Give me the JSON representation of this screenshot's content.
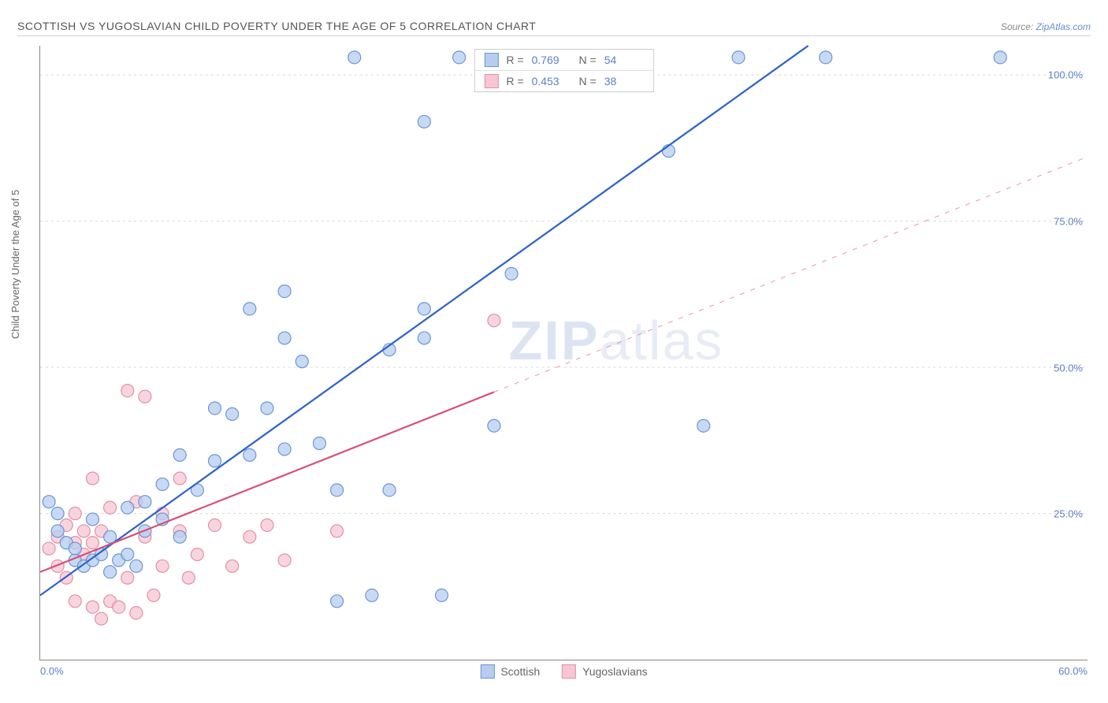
{
  "title": "SCOTTISH VS YUGOSLAVIAN CHILD POVERTY UNDER THE AGE OF 5 CORRELATION CHART",
  "source_prefix": "Source: ",
  "source_site": "ZipAtlas.com",
  "watermark_a": "ZIP",
  "watermark_b": "atlas",
  "ylabel": "Child Poverty Under the Age of 5",
  "chart": {
    "type": "scatter",
    "background_color": "#ffffff",
    "grid_color": "#d8d8d8",
    "axis_color": "#888888",
    "tick_color": "#5b7fc7",
    "xlim": [
      0,
      60
    ],
    "ylim": [
      0,
      105
    ],
    "y_ticks": [
      25,
      50,
      75,
      100
    ],
    "y_tick_labels": [
      "25.0%",
      "50.0%",
      "75.0%",
      "100.0%"
    ],
    "x_tick_left": "0.0%",
    "x_tick_right": "60.0%",
    "marker_radius": 8,
    "marker_stroke_width": 1.2,
    "line_width": 2.2,
    "series": [
      {
        "name": "Scottish",
        "color_fill": "#b6cdef",
        "color_stroke": "#6a95d8",
        "line_color": "#2c62c9",
        "line_dash": "none",
        "r_label": "R =",
        "r_value": "0.769",
        "n_label": "N =",
        "n_value": "54",
        "trend": {
          "x1": 0,
          "y1": 11,
          "x2": 44,
          "y2": 105
        },
        "points": [
          [
            0.5,
            27
          ],
          [
            1,
            25
          ],
          [
            1,
            22
          ],
          [
            1.5,
            20
          ],
          [
            2,
            17
          ],
          [
            2,
            19
          ],
          [
            2.5,
            16
          ],
          [
            3,
            17
          ],
          [
            3,
            24
          ],
          [
            3.5,
            18
          ],
          [
            4,
            15
          ],
          [
            4,
            21
          ],
          [
            4.5,
            17
          ],
          [
            5,
            18
          ],
          [
            5,
            26
          ],
          [
            5.5,
            16
          ],
          [
            6,
            27
          ],
          [
            6,
            22
          ],
          [
            7,
            30
          ],
          [
            7,
            24
          ],
          [
            8,
            21
          ],
          [
            8,
            35
          ],
          [
            9,
            29
          ],
          [
            10,
            43
          ],
          [
            10,
            34
          ],
          [
            11,
            42
          ],
          [
            12,
            35
          ],
          [
            12,
            60
          ],
          [
            13,
            43
          ],
          [
            14,
            55
          ],
          [
            14,
            63
          ],
          [
            14,
            36
          ],
          [
            15,
            51
          ],
          [
            16,
            37
          ],
          [
            17,
            29
          ],
          [
            17,
            10
          ],
          [
            18,
            103
          ],
          [
            19,
            11
          ],
          [
            20,
            53
          ],
          [
            20,
            29
          ],
          [
            22,
            55
          ],
          [
            22,
            60
          ],
          [
            22,
            92
          ],
          [
            23,
            11
          ],
          [
            24,
            103
          ],
          [
            26,
            40
          ],
          [
            27,
            66
          ],
          [
            30,
            103
          ],
          [
            33,
            103
          ],
          [
            36,
            87
          ],
          [
            38,
            40
          ],
          [
            40,
            103
          ],
          [
            45,
            103
          ],
          [
            55,
            103
          ]
        ]
      },
      {
        "name": "Yugoslavians",
        "color_fill": "#f6c7d3",
        "color_stroke": "#e48fa7",
        "line_color": "#d94f77",
        "line_dash": "dashed_after",
        "dash_split_x": 26,
        "r_label": "R =",
        "r_value": "0.453",
        "n_label": "N =",
        "n_value": "38",
        "trend": {
          "x1": 0,
          "y1": 15,
          "x2": 60,
          "y2": 86
        },
        "points": [
          [
            0.5,
            19
          ],
          [
            1,
            21
          ],
          [
            1,
            16
          ],
          [
            1.5,
            23
          ],
          [
            1.5,
            14
          ],
          [
            2,
            20
          ],
          [
            2,
            25
          ],
          [
            2,
            10
          ],
          [
            2.5,
            18
          ],
          [
            2.5,
            22
          ],
          [
            3,
            20
          ],
          [
            3,
            31
          ],
          [
            3,
            9
          ],
          [
            3.5,
            22
          ],
          [
            3.5,
            7
          ],
          [
            4,
            10
          ],
          [
            4,
            26
          ],
          [
            4.5,
            9
          ],
          [
            5,
            46
          ],
          [
            5,
            14
          ],
          [
            5.5,
            27
          ],
          [
            5.5,
            8
          ],
          [
            6,
            21
          ],
          [
            6,
            45
          ],
          [
            6.5,
            11
          ],
          [
            7,
            25
          ],
          [
            7,
            16
          ],
          [
            8,
            22
          ],
          [
            8,
            31
          ],
          [
            8.5,
            14
          ],
          [
            9,
            18
          ],
          [
            10,
            23
          ],
          [
            11,
            16
          ],
          [
            12,
            21
          ],
          [
            13,
            23
          ],
          [
            14,
            17
          ],
          [
            17,
            22
          ],
          [
            26,
            58
          ]
        ]
      }
    ],
    "legend_bottom": [
      {
        "label": "Scottish",
        "fill": "#b6cdef",
        "stroke": "#6a95d8"
      },
      {
        "label": "Yugoslavians",
        "fill": "#f6c7d3",
        "stroke": "#e48fa7"
      }
    ]
  }
}
